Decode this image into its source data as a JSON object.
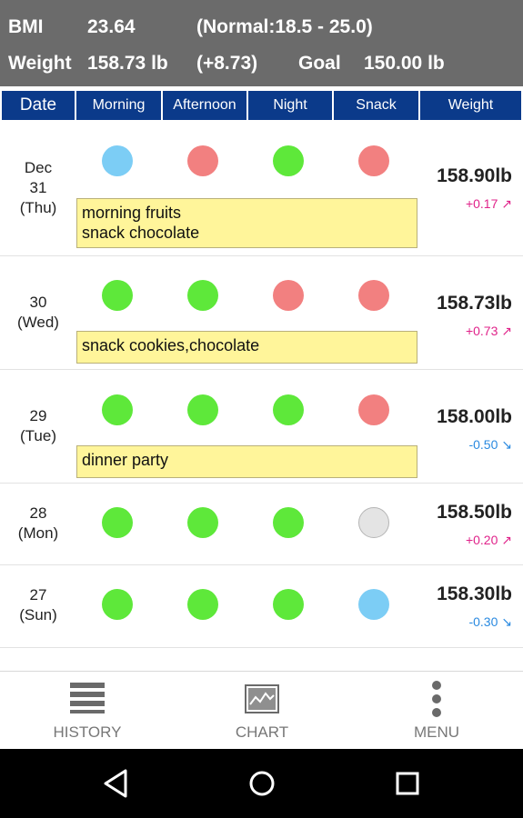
{
  "summary": {
    "bmi_label": "BMI",
    "bmi_value": "23.64",
    "bmi_range": "(Normal:18.5 - 25.0)",
    "weight_label": "Weight",
    "weight_value": "158.73 lb",
    "weight_change": "(+8.73)",
    "goal_label": "Goal",
    "goal_value": "150.00 lb"
  },
  "columns": [
    "Date",
    "Morning",
    "Afternoon",
    "Night",
    "Snack",
    "Weight"
  ],
  "colors": {
    "green": "#5ee83a",
    "red": "#f28080",
    "blue": "#7ccdf5",
    "gray": "#e4e4e4",
    "header_bg": "#0b3a8a",
    "delta_up": "#e0238a",
    "delta_down": "#2a8ae0"
  },
  "rows": [
    {
      "date_line1": "Dec",
      "date_line2": "31",
      "date_line3": "(Thu)",
      "dots": [
        "blue",
        "red",
        "green",
        "red"
      ],
      "note": "morning fruits\nsnack chocolate",
      "weight": "158.90lb",
      "delta": "+0.17 ↗",
      "trend": "up"
    },
    {
      "date_line1": "30",
      "date_line2": "(Wed)",
      "dots": [
        "green",
        "green",
        "red",
        "red"
      ],
      "note": "snack cookies,chocolate",
      "weight": "158.73lb",
      "delta": "+0.73 ↗",
      "trend": "up"
    },
    {
      "date_line1": "29",
      "date_line2": "(Tue)",
      "dots": [
        "green",
        "green",
        "green",
        "red"
      ],
      "note": "dinner party",
      "weight": "158.00lb",
      "delta": "-0.50 ↘",
      "trend": "down"
    },
    {
      "date_line1": "28",
      "date_line2": "(Mon)",
      "dots": [
        "green",
        "green",
        "green",
        "gray"
      ],
      "note": "",
      "weight": "158.50lb",
      "delta": "+0.20 ↗",
      "trend": "up"
    },
    {
      "date_line1": "27",
      "date_line2": "(Sun)",
      "dots": [
        "green",
        "green",
        "green",
        "blue"
      ],
      "note": "",
      "weight": "158.30lb",
      "delta": "-0.30 ↘",
      "trend": "down"
    }
  ],
  "nav": {
    "history": "HISTORY",
    "chart": "CHART",
    "menu": "MENU"
  },
  "system_nav": [
    "back-icon",
    "home-icon",
    "recents-icon"
  ]
}
